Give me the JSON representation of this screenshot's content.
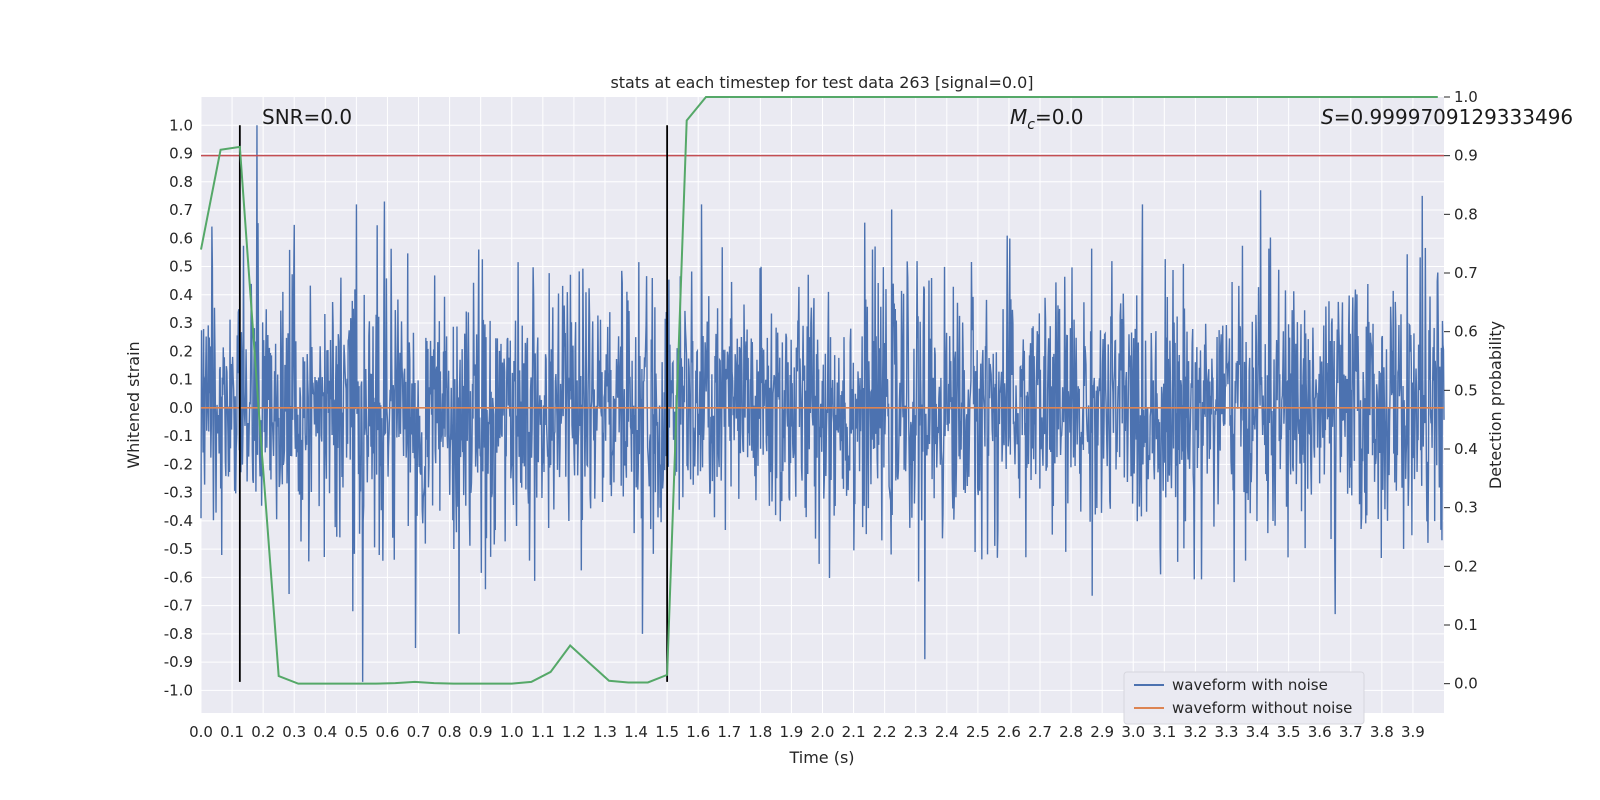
{
  "chart_data": {
    "type": "line",
    "title": "stats at each timestep for test data 263 [signal=0.0]",
    "xlabel": "Time (s)",
    "ylabel_left": "Whitened strain",
    "ylabel_right": "Detection probability",
    "xlim": [
      0.0,
      4.0
    ],
    "ylim_left": [
      -1.08,
      1.1
    ],
    "ylim_right": [
      -0.05,
      1.0
    ],
    "x_ticks": [
      "0.0",
      "0.1",
      "0.2",
      "0.3",
      "0.4",
      "0.5",
      "0.6",
      "0.7",
      "0.8",
      "0.9",
      "1.0",
      "1.1",
      "1.2",
      "1.3",
      "1.4",
      "1.5",
      "1.6",
      "1.7",
      "1.8",
      "1.9",
      "2.0",
      "2.1",
      "2.2",
      "2.3",
      "2.4",
      "2.5",
      "2.6",
      "2.7",
      "2.8",
      "2.9",
      "3.0",
      "3.1",
      "3.2",
      "3.3",
      "3.4",
      "3.5",
      "3.6",
      "3.7",
      "3.8",
      "3.9"
    ],
    "y_ticks_left": [
      "-1.0",
      "-0.9",
      "-0.8",
      "-0.7",
      "-0.6",
      "-0.5",
      "-0.4",
      "-0.3",
      "-0.2",
      "-0.1",
      "0.0",
      "0.1",
      "0.2",
      "0.3",
      "0.4",
      "0.5",
      "0.6",
      "0.7",
      "0.8",
      "0.9",
      "1.0"
    ],
    "y_ticks_right": [
      "0.0",
      "0.1",
      "0.2",
      "0.3",
      "0.4",
      "0.5",
      "0.6",
      "0.7",
      "0.8",
      "0.9",
      "1.0"
    ],
    "grid": true,
    "legend_position": "lower-right",
    "annotations": {
      "snr": "SNR=0.0",
      "mc_symbol": "M",
      "mc_sub": "c",
      "mc_value": "=0.0",
      "s_symbol": "S",
      "s_value": "=0.9999709129333496"
    },
    "series": [
      {
        "name": "waveform with noise",
        "color": "#4c72b0",
        "noise_std": 0.22,
        "peaks": [
          {
            "x": 0.18,
            "y": 1.0
          },
          {
            "x": 0.52,
            "y": -0.97
          },
          {
            "x": 2.33,
            "y": -0.89
          },
          {
            "x": 3.41,
            "y": 0.77
          },
          {
            "x": 3.93,
            "y": 0.75
          },
          {
            "x": 0.59,
            "y": 0.73
          },
          {
            "x": 0.69,
            "y": -0.85
          },
          {
            "x": 0.83,
            "y": -0.8
          },
          {
            "x": 1.42,
            "y": -0.8
          },
          {
            "x": 3.65,
            "y": -0.73
          }
        ]
      },
      {
        "name": "waveform without noise",
        "color": "#dd8452",
        "values_constant": 0.0
      },
      {
        "name": "detection probability",
        "color": "#55a868",
        "axis": "right",
        "x": [
          0.0,
          0.063,
          0.125,
          0.188,
          0.25,
          0.313,
          0.375,
          0.438,
          0.5,
          0.563,
          0.625,
          0.688,
          0.75,
          0.813,
          0.875,
          0.938,
          1.0,
          1.063,
          1.125,
          1.188,
          1.25,
          1.313,
          1.375,
          1.438,
          1.5,
          1.563,
          1.625,
          1.688,
          1.75,
          1.813,
          1.875,
          1.938,
          2.0,
          2.5,
          3.0,
          3.5,
          3.98
        ],
        "values": [
          0.74,
          0.91,
          0.915,
          0.45,
          0.013,
          0.0,
          0.0,
          0.0,
          0.0,
          0.0,
          0.001,
          0.003,
          0.001,
          0.0,
          0.0,
          0.0,
          0.0,
          0.003,
          0.02,
          0.065,
          0.035,
          0.005,
          0.002,
          0.002,
          0.015,
          0.96,
          1.0,
          1.0,
          1.0,
          1.0,
          1.0,
          1.0,
          1.0,
          1.0,
          1.0,
          1.0,
          1.0
        ]
      }
    ],
    "reference_lines": {
      "threshold_right": 0.9,
      "threshold_color": "#c44e52",
      "vlines_x": [
        0.125,
        1.5
      ],
      "vline_range_left": [
        -0.97,
        1.0
      ],
      "vline_color": "#000000"
    }
  }
}
